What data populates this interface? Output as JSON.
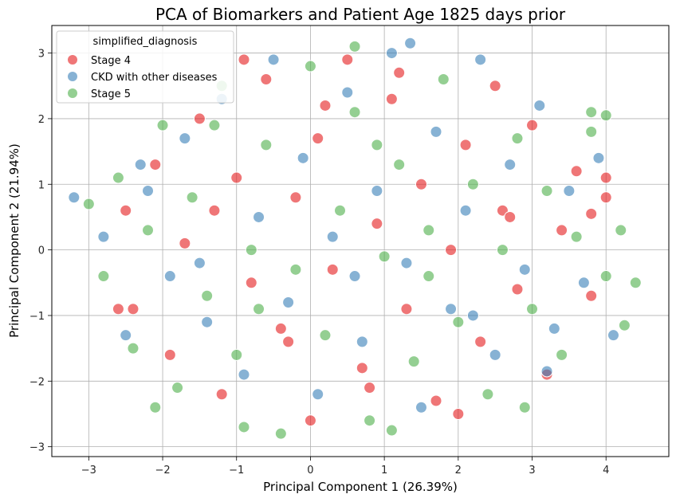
{
  "chart_data": {
    "type": "scatter",
    "title": "PCA of Biomarkers and Patient Age 1825 days prior",
    "xlabel": "Principal Component 1 (26.39%)",
    "ylabel": "Principal Component 2 (21.94%)",
    "xlim": [
      -3.5,
      4.85
    ],
    "ylim": [
      -3.15,
      3.42
    ],
    "xticks": [
      -3,
      -2,
      -1,
      0,
      1,
      2,
      3,
      4
    ],
    "yticks": [
      -3,
      -2,
      -1,
      0,
      1,
      2,
      3
    ],
    "grid": true,
    "legend": {
      "title": "simplified_diagnosis",
      "position": "top-left",
      "entries": [
        {
          "label": "Stage 4",
          "color": "#e41a1c"
        },
        {
          "label": "CKD with other diseases",
          "color": "#377eb8"
        },
        {
          "label": "Stage 5",
          "color": "#4daf4a"
        }
      ]
    },
    "series": [
      {
        "name": "Stage 4",
        "color": "#e41a1c",
        "points": [
          [
            -2.5,
            0.6
          ],
          [
            -2.4,
            -0.9
          ],
          [
            -2.1,
            1.3
          ],
          [
            -1.9,
            -1.6
          ],
          [
            -1.7,
            0.1
          ],
          [
            -1.5,
            2.0
          ],
          [
            -1.2,
            -2.2
          ],
          [
            -1.0,
            1.1
          ],
          [
            -0.8,
            -0.5
          ],
          [
            -0.6,
            2.6
          ],
          [
            -0.4,
            -1.2
          ],
          [
            -0.2,
            0.8
          ],
          [
            0.0,
            -2.6
          ],
          [
            0.1,
            1.7
          ],
          [
            0.3,
            -0.3
          ],
          [
            0.5,
            2.9
          ],
          [
            0.7,
            -1.8
          ],
          [
            0.9,
            0.4
          ],
          [
            1.1,
            2.3
          ],
          [
            1.3,
            -0.9
          ],
          [
            1.5,
            1.0
          ],
          [
            1.7,
            -2.3
          ],
          [
            1.9,
            0.0
          ],
          [
            2.1,
            1.6
          ],
          [
            2.3,
            -1.4
          ],
          [
            2.5,
            2.5
          ],
          [
            2.6,
            0.6
          ],
          [
            2.8,
            -0.6
          ],
          [
            3.0,
            1.9
          ],
          [
            3.2,
            -1.9
          ],
          [
            3.4,
            0.3
          ],
          [
            3.6,
            1.2
          ],
          [
            3.8,
            -0.7
          ],
          [
            4.0,
            0.8
          ],
          [
            4.0,
            1.1
          ],
          [
            2.0,
            -2.5
          ],
          [
            -1.3,
            0.6
          ],
          [
            -0.9,
            2.9
          ],
          [
            0.8,
            -2.1
          ],
          [
            1.2,
            2.7
          ],
          [
            -2.6,
            -0.9
          ],
          [
            2.7,
            0.5
          ],
          [
            3.8,
            0.55
          ],
          [
            -0.3,
            -1.4
          ],
          [
            0.2,
            2.2
          ]
        ]
      },
      {
        "name": "CKD with other diseases",
        "color": "#377eb8",
        "points": [
          [
            -3.2,
            0.8
          ],
          [
            -2.8,
            0.2
          ],
          [
            -2.5,
            -1.3
          ],
          [
            -2.2,
            0.9
          ],
          [
            -1.9,
            -0.4
          ],
          [
            -1.7,
            1.7
          ],
          [
            -1.4,
            -1.1
          ],
          [
            -1.2,
            2.3
          ],
          [
            -0.9,
            -1.9
          ],
          [
            -0.7,
            0.5
          ],
          [
            -0.5,
            2.9
          ],
          [
            -0.3,
            -0.8
          ],
          [
            -0.1,
            1.4
          ],
          [
            0.1,
            -2.2
          ],
          [
            0.3,
            0.2
          ],
          [
            0.5,
            2.4
          ],
          [
            0.7,
            -1.4
          ],
          [
            0.9,
            0.9
          ],
          [
            1.1,
            3.0
          ],
          [
            1.3,
            -0.2
          ],
          [
            1.5,
            -2.4
          ],
          [
            1.7,
            1.8
          ],
          [
            1.9,
            -0.9
          ],
          [
            2.1,
            0.6
          ],
          [
            2.3,
            2.9
          ],
          [
            2.5,
            -1.6
          ],
          [
            2.7,
            1.3
          ],
          [
            2.9,
            -0.3
          ],
          [
            3.1,
            2.2
          ],
          [
            3.3,
            -1.2
          ],
          [
            3.5,
            0.9
          ],
          [
            3.7,
            -0.5
          ],
          [
            3.9,
            1.4
          ],
          [
            4.1,
            -1.3
          ],
          [
            3.2,
            -1.85
          ],
          [
            1.35,
            3.15
          ],
          [
            -2.3,
            1.3
          ],
          [
            0.6,
            -0.4
          ],
          [
            -1.5,
            -0.2
          ],
          [
            2.2,
            -1.0
          ]
        ]
      },
      {
        "name": "Stage 5",
        "color": "#4daf4a",
        "points": [
          [
            -3.0,
            0.7
          ],
          [
            -2.8,
            -0.4
          ],
          [
            -2.6,
            1.1
          ],
          [
            -2.4,
            -1.5
          ],
          [
            -2.2,
            0.3
          ],
          [
            -2.0,
            1.9
          ],
          [
            -1.8,
            -2.1
          ],
          [
            -1.6,
            0.8
          ],
          [
            -1.4,
            -0.7
          ],
          [
            -1.2,
            2.5
          ],
          [
            -1.0,
            -1.6
          ],
          [
            -0.8,
            0.0
          ],
          [
            -0.6,
            1.6
          ],
          [
            -0.4,
            -2.8
          ],
          [
            -0.2,
            -0.3
          ],
          [
            0.0,
            2.8
          ],
          [
            0.2,
            -1.3
          ],
          [
            0.4,
            0.6
          ],
          [
            0.6,
            2.1
          ],
          [
            0.8,
            -2.6
          ],
          [
            1.0,
            -0.1
          ],
          [
            1.2,
            1.3
          ],
          [
            1.4,
            -1.7
          ],
          [
            1.6,
            0.3
          ],
          [
            1.8,
            2.6
          ],
          [
            2.0,
            -1.1
          ],
          [
            2.2,
            1.0
          ],
          [
            2.4,
            -2.2
          ],
          [
            2.6,
            0.0
          ],
          [
            2.8,
            1.7
          ],
          [
            3.0,
            -0.9
          ],
          [
            3.2,
            0.9
          ],
          [
            3.4,
            -1.6
          ],
          [
            3.6,
            0.2
          ],
          [
            3.8,
            1.8
          ],
          [
            4.0,
            -0.4
          ],
          [
            4.2,
            0.3
          ],
          [
            4.4,
            -0.5
          ],
          [
            4.25,
            -1.15
          ],
          [
            3.8,
            2.1
          ],
          [
            4.0,
            2.05
          ],
          [
            -0.9,
            -2.7
          ],
          [
            0.6,
            3.1
          ],
          [
            -2.1,
            -2.4
          ],
          [
            2.9,
            -2.4
          ],
          [
            1.1,
            -2.75
          ],
          [
            -1.3,
            1.9
          ],
          [
            0.9,
            1.6
          ],
          [
            -0.7,
            -0.9
          ],
          [
            1.6,
            -0.4
          ]
        ]
      }
    ]
  }
}
